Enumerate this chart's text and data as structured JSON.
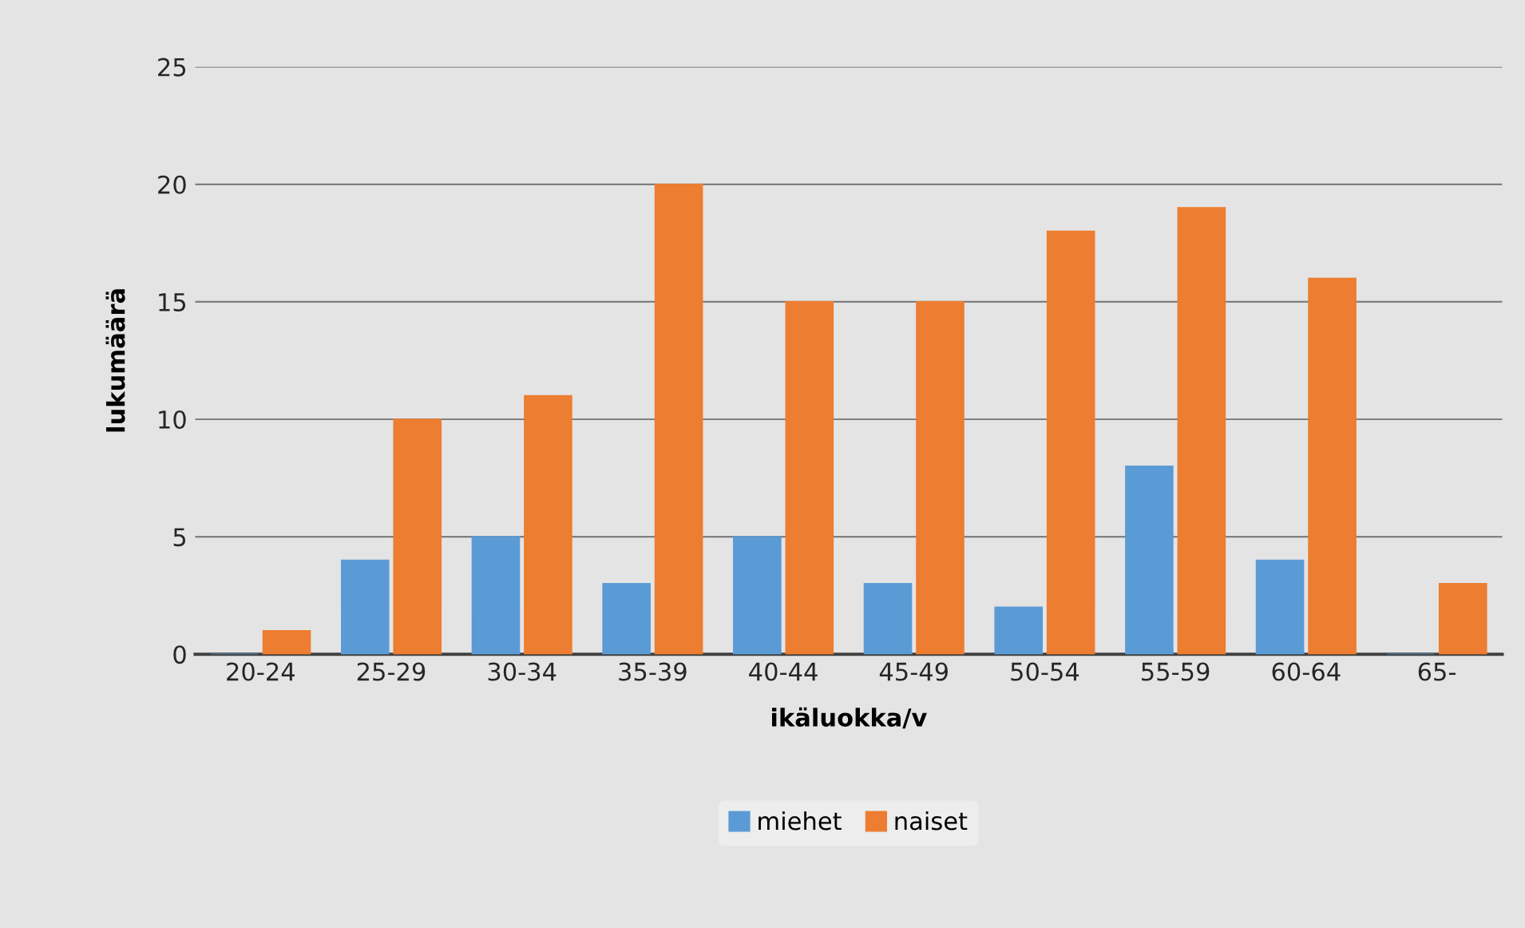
{
  "chart_data": {
    "type": "bar",
    "xlabel": "ikäluokka/v",
    "ylabel": "lukumäärä",
    "categories": [
      "20-24",
      "25-29",
      "30-34",
      "35-39",
      "40-44",
      "45-49",
      "50-54",
      "55-59",
      "60-64",
      "65-"
    ],
    "series": [
      {
        "name": "miehet",
        "color": "#5b9bd5",
        "values": [
          0,
          4,
          5,
          3,
          5,
          3,
          2,
          8,
          4,
          0
        ]
      },
      {
        "name": "naiset",
        "color": "#ed7d31",
        "values": [
          1,
          10,
          11,
          20,
          15,
          15,
          18,
          19,
          16,
          3
        ]
      }
    ],
    "ylim": [
      0,
      25
    ],
    "yticks": [
      0,
      5,
      10,
      15,
      20,
      25
    ],
    "grid": "y",
    "legend": "bottom"
  }
}
